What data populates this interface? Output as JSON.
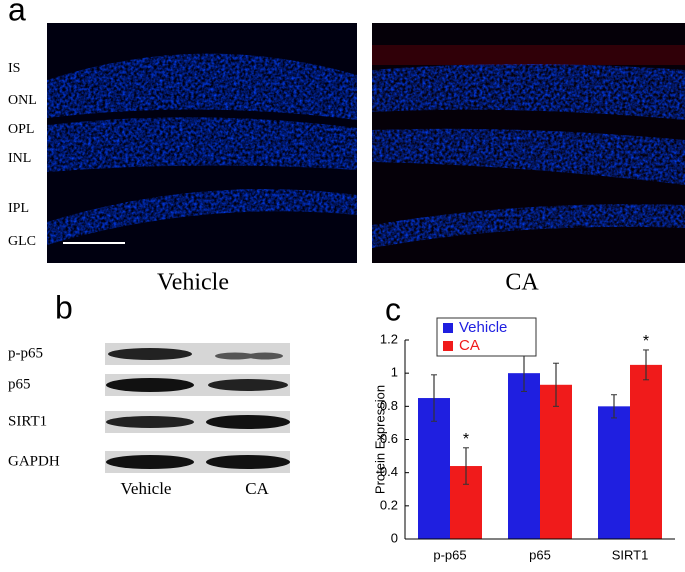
{
  "panel_labels": [
    "a",
    "b",
    "c"
  ],
  "retina": {
    "layers": [
      "IS",
      "ONL",
      "OPL",
      "INL",
      "IPL",
      "GLC"
    ],
    "captions": [
      "Vehicle",
      "CA"
    ]
  },
  "blot": {
    "rows": [
      "p-p65",
      "p65",
      "SIRT1",
      "GAPDH"
    ],
    "columns": [
      "Vehicle",
      "CA"
    ]
  },
  "chart_data": {
    "type": "bar",
    "ylabel": "Protein Expression",
    "categories": [
      "p-p65",
      "p65",
      "SIRT1"
    ],
    "series": [
      {
        "name": "Vehicle",
        "color": "#1f1fe0",
        "values": [
          0.85,
          1.0,
          0.8
        ],
        "errors": [
          0.14,
          0.11,
          0.07
        ]
      },
      {
        "name": "CA",
        "color": "#f01b1b",
        "values": [
          0.44,
          0.93,
          1.05
        ],
        "errors": [
          0.11,
          0.13,
          0.09
        ]
      }
    ],
    "annotations": [
      "*",
      "*"
    ],
    "ylim": [
      0,
      1.2
    ],
    "yticks": [
      0,
      0.2,
      0.4,
      0.6,
      0.8,
      1,
      1.2
    ],
    "legend": "upper left",
    "grid": false
  }
}
